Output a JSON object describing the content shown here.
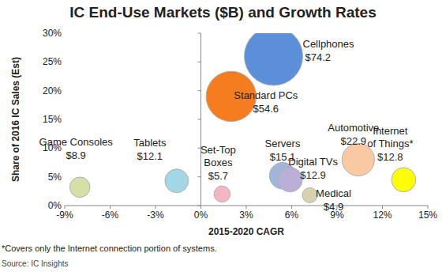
{
  "chart_data": {
    "type": "bubble",
    "title": "IC End-Use Markets ($B) and Growth Rates",
    "x_label": "2015-2020 CAGR",
    "y_label": "Share of 2016 IC Sales (Est)",
    "footnote": "*Covers only the Internet connection portion of systems.",
    "source": "Source: IC Insights",
    "labels": [
      "Cellphones",
      "Standard PCs",
      "Game Consoles",
      "Tablets",
      "Set-Top Boxes",
      "Servers",
      "Digital TVs",
      "Medical",
      "Automotive",
      "Internet of Things*"
    ],
    "x": [
      4.8,
      2.0,
      -8.0,
      -1.6,
      1.4,
      5.4,
      5.9,
      7.2,
      10.4,
      13.4
    ],
    "values": [
      26,
      19,
      3.2,
      4.3,
      2.0,
      5.2,
      4.5,
      1.8,
      8.0,
      4.5
    ],
    "sizes": [
      74.2,
      54.6,
      8.9,
      12.1,
      5.7,
      15.1,
      12.9,
      4.9,
      22.9,
      12.8
    ],
    "size_labels": [
      "$74.2",
      "$54.6",
      "$8.9",
      "$12.1",
      "$5.7",
      "$15.1",
      "$12.9",
      "$4.9",
      "$22.9",
      "$12.8"
    ],
    "colors": [
      "#5b8fd9",
      "#f57d1f",
      "#d5e0a6",
      "#a3d6e6",
      "#f4b6c4",
      "#9fb5da",
      "#bbaed9",
      "#d8d2b0",
      "#f9c9a3",
      "#ffff00"
    ],
    "xlim": [
      -9,
      15
    ],
    "ylim": [
      0,
      30
    ],
    "xticks": [
      {
        "value": -9,
        "label": "-9%"
      },
      {
        "value": -6,
        "label": "-6%"
      },
      {
        "value": -3,
        "label": "-3%"
      },
      {
        "value": 0,
        "label": "0%"
      },
      {
        "value": 3,
        "label": "3%"
      },
      {
        "value": 6,
        "label": "6%"
      },
      {
        "value": 9,
        "label": "9%"
      },
      {
        "value": 12,
        "label": "12%"
      },
      {
        "value": 15,
        "label": "15%"
      }
    ],
    "yticks": [
      {
        "value": 0,
        "label": "0%"
      },
      {
        "value": 5,
        "label": "5%"
      },
      {
        "value": 10,
        "label": "10%"
      },
      {
        "value": 15,
        "label": "15%"
      },
      {
        "value": 20,
        "label": "20%"
      },
      {
        "value": 25,
        "label": "25%"
      },
      {
        "value": 30,
        "label": "30%"
      }
    ],
    "grid": false,
    "data_labels": true
  }
}
